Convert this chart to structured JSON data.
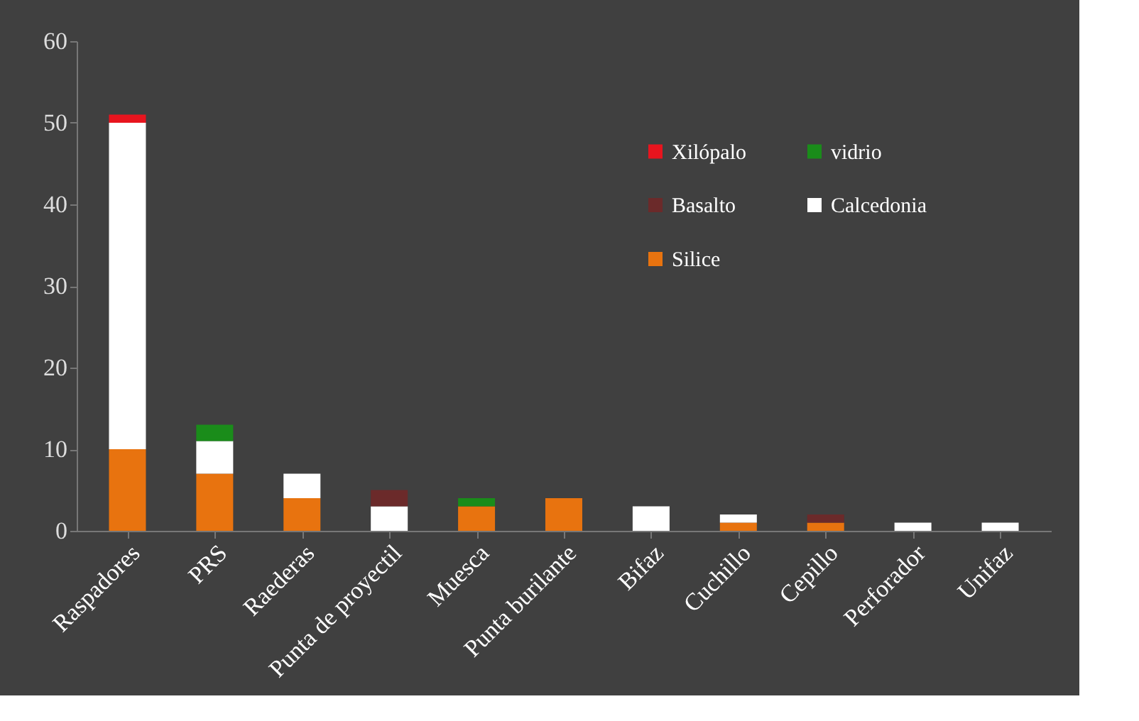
{
  "chart_data": {
    "type": "bar",
    "stacked": true,
    "categories": [
      "Raspadores",
      "PRS",
      "Raederas",
      "Punta de proyectil",
      "Muesca",
      "Punta burilante",
      "Bifaz",
      "Cuchillo",
      "Cepillo",
      "Perforador",
      "Unifaz"
    ],
    "series": [
      {
        "name": "Silice",
        "color": "#e8730f",
        "values": [
          10,
          7,
          4,
          null,
          3,
          4,
          null,
          1,
          1,
          null,
          null
        ]
      },
      {
        "name": "Calcedonia",
        "color": "#ffffff",
        "values": [
          40,
          4,
          3,
          3,
          null,
          null,
          3,
          1,
          null,
          1,
          1
        ]
      },
      {
        "name": "Basalto",
        "color": "#6b2a2a",
        "values": [
          null,
          null,
          null,
          2,
          null,
          null,
          null,
          null,
          1,
          null,
          null
        ]
      },
      {
        "name": "vidrio",
        "color": "#1a8c1a",
        "values": [
          null,
          2,
          null,
          null,
          1,
          null,
          null,
          null,
          null,
          null,
          null
        ]
      },
      {
        "name": "Xilópalo",
        "color": "#e8141e",
        "values": [
          1,
          null,
          null,
          null,
          null,
          null,
          null,
          null,
          null,
          null,
          null
        ]
      }
    ],
    "ylim": [
      0,
      60
    ],
    "yticks": [
      0,
      10,
      20,
      30,
      40,
      50,
      60
    ],
    "grid": false,
    "legend": "top right"
  }
}
